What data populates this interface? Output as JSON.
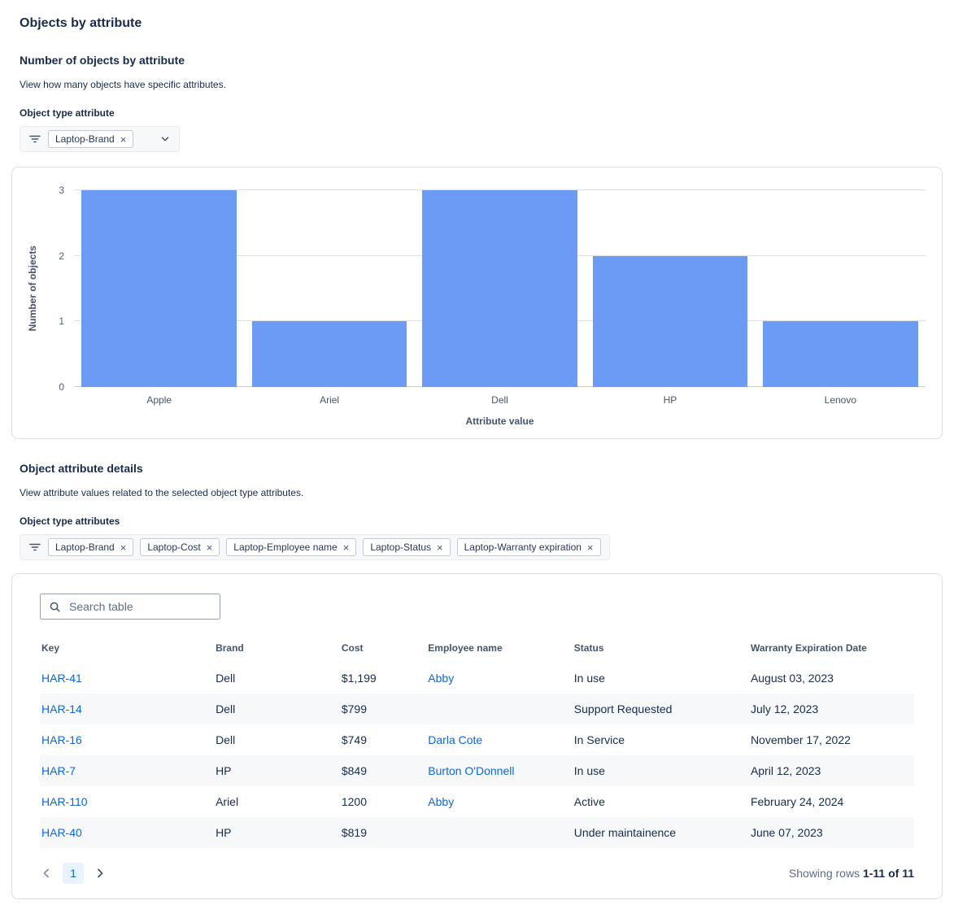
{
  "page": {
    "title": "Objects by attribute"
  },
  "chart_section": {
    "heading": "Number of objects by attribute",
    "description": "View how many objects have specific attributes.",
    "filter_label": "Object type attribute",
    "filter_chips": [
      {
        "label": "Laptop-Brand"
      }
    ]
  },
  "chart_data": {
    "type": "bar",
    "categories": [
      "Apple",
      "Ariel",
      "Dell",
      "HP",
      "Lenovo"
    ],
    "values": [
      3,
      1,
      3,
      2,
      1
    ],
    "title": "",
    "xlabel": "Attribute value",
    "ylabel": "Number of objects",
    "ylim": [
      0,
      3
    ],
    "yticks": [
      0,
      1,
      2,
      3
    ],
    "bar_color": "#6C9BF5",
    "grid": true,
    "legend": false
  },
  "details_section": {
    "heading": "Object attribute details",
    "description": "View attribute values related to the selected object type attributes.",
    "filter_label": "Object type attributes",
    "filter_chips": [
      {
        "label": "Laptop-Brand"
      },
      {
        "label": "Laptop-Cost"
      },
      {
        "label": "Laptop-Employee name"
      },
      {
        "label": "Laptop-Status"
      },
      {
        "label": "Laptop-Warranty expiration"
      }
    ]
  },
  "table": {
    "search_placeholder": "Search table",
    "columns": [
      "Key",
      "Brand",
      "Cost",
      "Employee name",
      "Status",
      "Warranty Expiration Date"
    ],
    "rows": [
      {
        "key": "HAR-41",
        "brand": "Dell",
        "cost": "$1,199",
        "employee": "Abby",
        "status": "In use",
        "warranty": "August 03, 2023"
      },
      {
        "key": "HAR-14",
        "brand": "Dell",
        "cost": "$799",
        "employee": "",
        "status": "Support Requested",
        "warranty": "July 12, 2023"
      },
      {
        "key": "HAR-16",
        "brand": "Dell",
        "cost": "$749",
        "employee": "Darla Cote",
        "status": "In Service",
        "warranty": "November 17, 2022"
      },
      {
        "key": "HAR-7",
        "brand": "HP",
        "cost": "$849",
        "employee": "Burton O'Donnell",
        "status": "In use",
        "warranty": "April 12, 2023"
      },
      {
        "key": "HAR-110",
        "brand": "Ariel",
        "cost": "1200",
        "employee": "Abby",
        "status": "Active",
        "warranty": "February 24, 2024"
      },
      {
        "key": "HAR-40",
        "brand": "HP",
        "cost": "$819",
        "employee": "",
        "status": "Under maintainence",
        "warranty": "June 07, 2023"
      }
    ],
    "pagination": {
      "current_page": "1",
      "summary_prefix": "Showing rows",
      "summary_range": "1-11 of 11"
    }
  }
}
